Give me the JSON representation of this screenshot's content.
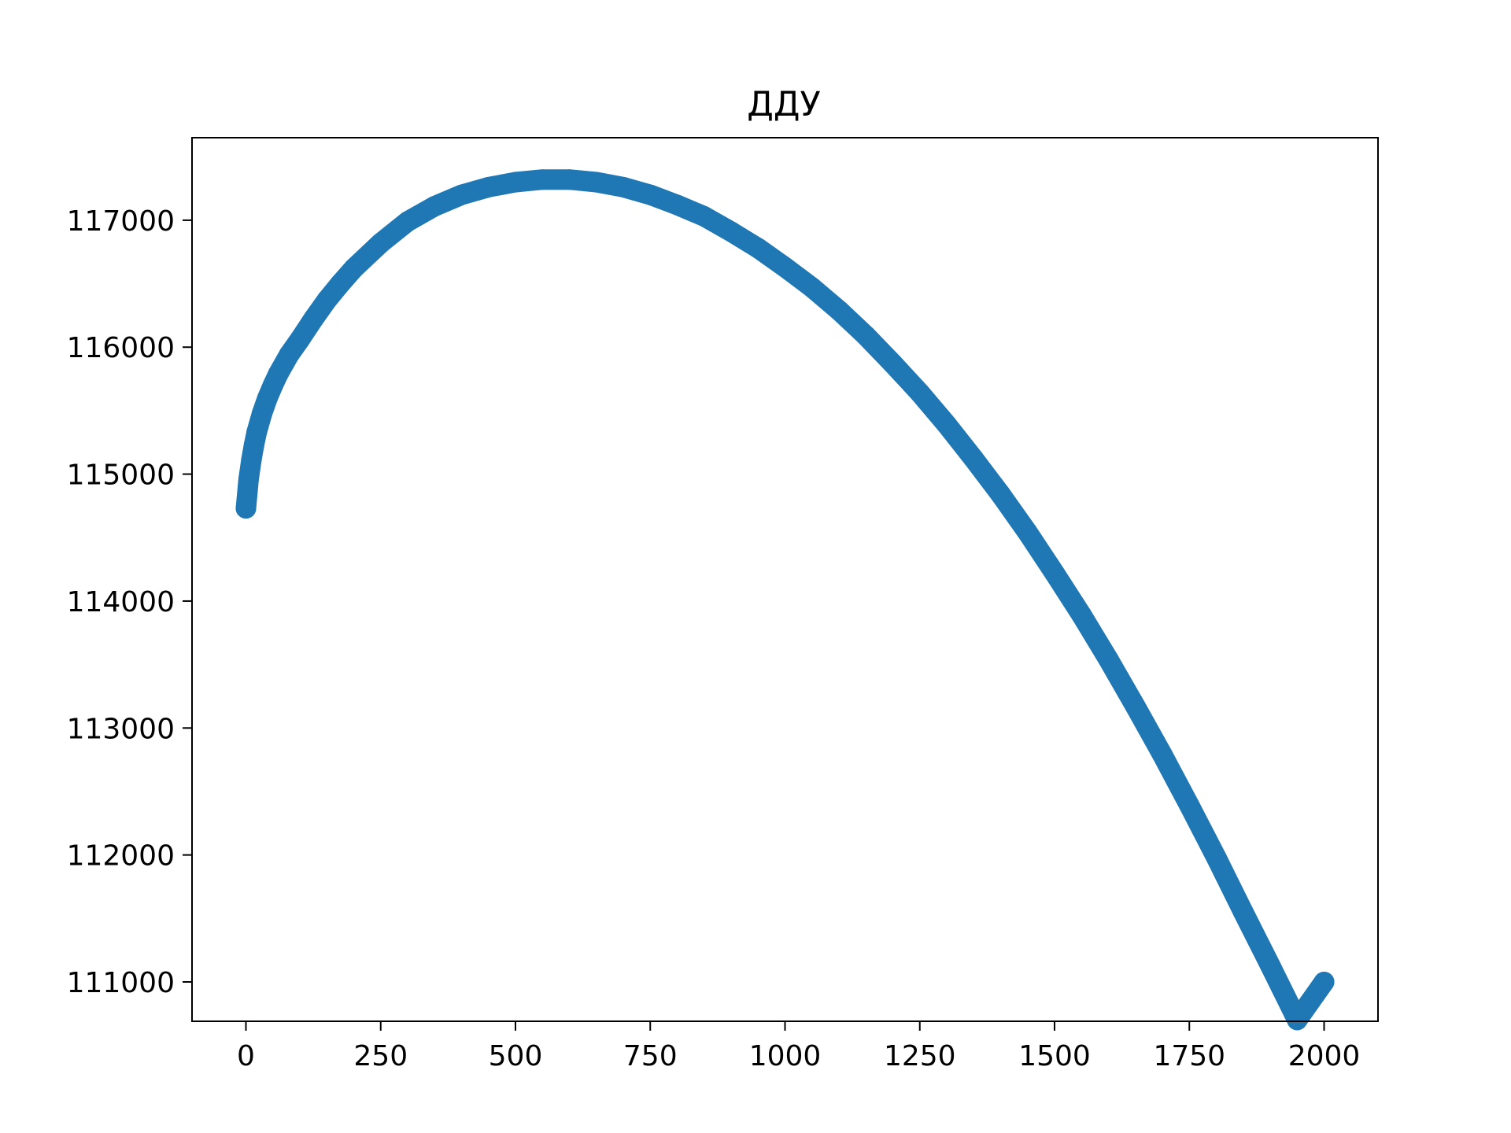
{
  "chart_data": {
    "type": "scatter",
    "title": "ДДУ",
    "xlabel": "",
    "ylabel": "",
    "xlim": [
      -100,
      2100
    ],
    "ylim": [
      110690,
      117650
    ],
    "grid": false,
    "legend": false,
    "x_ticks": [
      0,
      250,
      500,
      750,
      1000,
      1250,
      1500,
      1750,
      2000
    ],
    "x_tick_labels": [
      "0",
      "250",
      "500",
      "750",
      "1000",
      "1250",
      "1500",
      "1750",
      "2000"
    ],
    "y_ticks": [
      111000,
      112000,
      113000,
      114000,
      115000,
      116000,
      117000
    ],
    "y_tick_labels": [
      "111000",
      "112000",
      "113000",
      "114000",
      "115000",
      "116000",
      "117000"
    ],
    "series": [
      {
        "color": "#1f77b4",
        "points": [
          [
            0,
            114730
          ],
          [
            5,
            114960
          ],
          [
            10,
            115110
          ],
          [
            15,
            115230
          ],
          [
            20,
            115330
          ],
          [
            30,
            115480
          ],
          [
            40,
            115600
          ],
          [
            50,
            115700
          ],
          [
            60,
            115790
          ],
          [
            80,
            115940
          ],
          [
            100,
            116060
          ],
          [
            125,
            116220
          ],
          [
            150,
            116370
          ],
          [
            175,
            116500
          ],
          [
            200,
            116620
          ],
          [
            250,
            116820
          ],
          [
            300,
            116990
          ],
          [
            350,
            117110
          ],
          [
            400,
            117200
          ],
          [
            450,
            117260
          ],
          [
            500,
            117300
          ],
          [
            550,
            117320
          ],
          [
            600,
            117320
          ],
          [
            650,
            117300
          ],
          [
            700,
            117260
          ],
          [
            750,
            117200
          ],
          [
            800,
            117120
          ],
          [
            850,
            117030
          ],
          [
            900,
            116910
          ],
          [
            950,
            116780
          ],
          [
            1000,
            116630
          ],
          [
            1050,
            116470
          ],
          [
            1100,
            116290
          ],
          [
            1150,
            116090
          ],
          [
            1200,
            115870
          ],
          [
            1250,
            115640
          ],
          [
            1300,
            115390
          ],
          [
            1350,
            115120
          ],
          [
            1400,
            114840
          ],
          [
            1450,
            114540
          ],
          [
            1500,
            114220
          ],
          [
            1550,
            113890
          ],
          [
            1600,
            113540
          ],
          [
            1650,
            113170
          ],
          [
            1700,
            112790
          ],
          [
            1750,
            112390
          ],
          [
            1800,
            111980
          ],
          [
            1850,
            111550
          ],
          [
            1900,
            111130
          ],
          [
            1950,
            110700
          ],
          [
            2000,
            111000
          ]
        ]
      }
    ]
  }
}
